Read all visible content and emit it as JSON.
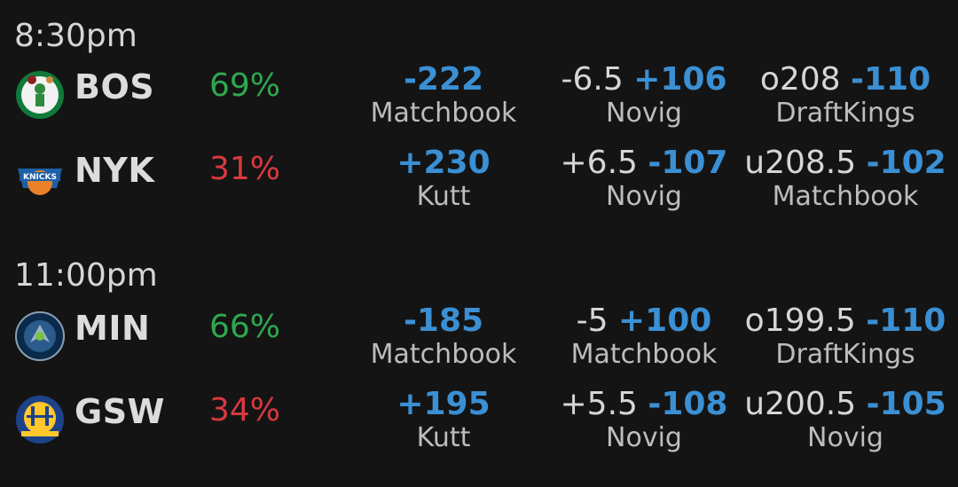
{
  "colors": {
    "green": "#2fa84f",
    "red": "#d8393f",
    "blue": "#3b8fd3"
  },
  "games": [
    {
      "time": "8:30pm",
      "teams": [
        {
          "abbr": "BOS",
          "pct": "69%",
          "pct_color": "green",
          "logo": "celtics-logo-icon",
          "moneyline": {
            "odds": "-222",
            "source": "Matchbook"
          },
          "spread": {
            "line": "-6.5",
            "odds": "+106",
            "source": "Novig"
          },
          "total": {
            "line": "o208",
            "odds": "-110",
            "source": "DraftKings"
          }
        },
        {
          "abbr": "NYK",
          "pct": "31%",
          "pct_color": "red",
          "logo": "knicks-logo-icon",
          "moneyline": {
            "odds": "+230",
            "source": "Kutt"
          },
          "spread": {
            "line": "+6.5",
            "odds": "-107",
            "source": "Novig"
          },
          "total": {
            "line": "u208.5",
            "odds": "-102",
            "source": "Matchbook"
          }
        }
      ]
    },
    {
      "time": "11:00pm",
      "teams": [
        {
          "abbr": "MIN",
          "pct": "66%",
          "pct_color": "green",
          "logo": "timberwolves-logo-icon",
          "moneyline": {
            "odds": "-185",
            "source": "Matchbook"
          },
          "spread": {
            "line": "-5",
            "odds": "+100",
            "source": "Matchbook"
          },
          "total": {
            "line": "o199.5",
            "odds": "-110",
            "source": "DraftKings"
          }
        },
        {
          "abbr": "GSW",
          "pct": "34%",
          "pct_color": "red",
          "logo": "warriors-logo-icon",
          "moneyline": {
            "odds": "+195",
            "source": "Kutt"
          },
          "spread": {
            "line": "+5.5",
            "odds": "-108",
            "source": "Novig"
          },
          "total": {
            "line": "u200.5",
            "odds": "-105",
            "source": "Novig"
          }
        }
      ]
    }
  ]
}
